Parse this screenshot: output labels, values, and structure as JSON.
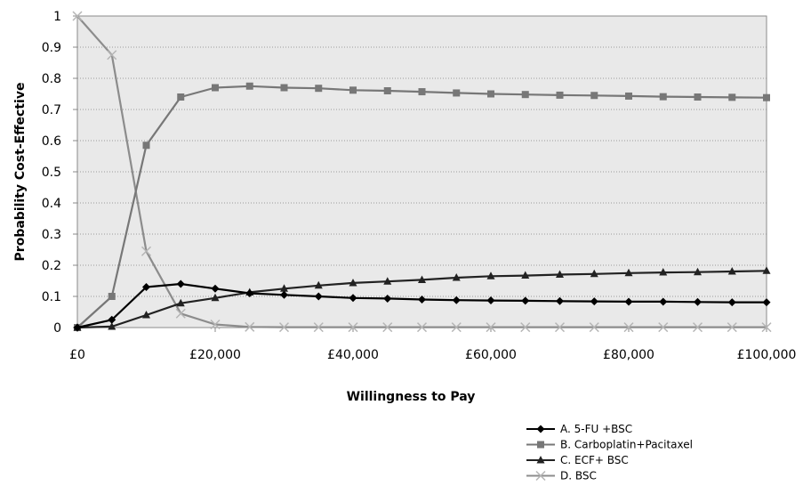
{
  "chart_data": {
    "type": "line",
    "title": "",
    "xlabel": "Willingness to Pay",
    "ylabel": "Probability Cost-Effective",
    "xlim": [
      0,
      100000
    ],
    "ylim": [
      0,
      1
    ],
    "grid": "horizontal dotted",
    "legend_position": "bottom-right",
    "x": [
      0,
      5000,
      10000,
      15000,
      20000,
      25000,
      30000,
      35000,
      40000,
      45000,
      50000,
      55000,
      60000,
      65000,
      70000,
      75000,
      80000,
      85000,
      90000,
      95000,
      100000
    ],
    "xtick_values": [
      0,
      20000,
      40000,
      60000,
      80000,
      100000
    ],
    "xtick_labels": [
      "£0",
      "£20,000",
      "£40,000",
      "£60,000",
      "£80,000",
      "£100,000"
    ],
    "ytick_values": [
      0,
      0.1,
      0.2,
      0.3,
      0.4,
      0.5,
      0.6,
      0.7,
      0.8,
      0.9,
      1
    ],
    "ytick_labels": [
      "0",
      "0.1",
      "0.2",
      "0.3",
      "0.4",
      "0.5",
      "0.6",
      "0.7",
      "0.8",
      "0.9",
      "1"
    ],
    "series": [
      {
        "name": "A. 5-FU +BSC",
        "color": "#000000",
        "marker": "diamond",
        "values": [
          0,
          0.025,
          0.13,
          0.14,
          0.125,
          0.11,
          0.105,
          0.1,
          0.095,
          0.093,
          0.09,
          0.088,
          0.087,
          0.086,
          0.085,
          0.084,
          0.083,
          0.083,
          0.082,
          0.081,
          0.081
        ]
      },
      {
        "name": "B. Carboplatin+Pacitaxel",
        "color": "#777777",
        "marker": "square",
        "values": [
          0,
          0.1,
          0.585,
          0.74,
          0.77,
          0.775,
          0.77,
          0.768,
          0.762,
          0.76,
          0.757,
          0.753,
          0.75,
          0.748,
          0.746,
          0.745,
          0.743,
          0.741,
          0.74,
          0.739,
          0.738
        ]
      },
      {
        "name": "C. ECF+ BSC",
        "color": "#222222",
        "marker": "triangle",
        "values": [
          0,
          0.003,
          0.04,
          0.078,
          0.095,
          0.113,
          0.125,
          0.135,
          0.143,
          0.148,
          0.153,
          0.16,
          0.165,
          0.167,
          0.17,
          0.172,
          0.175,
          0.177,
          0.178,
          0.18,
          0.182
        ]
      },
      {
        "name": "D.  BSC",
        "color": "#8c8c8c",
        "marker": "x",
        "values": [
          1,
          0.875,
          0.245,
          0.045,
          0.01,
          0.002,
          0.001,
          0.001,
          0.001,
          0.001,
          0.001,
          0.001,
          0.001,
          0.001,
          0.001,
          0.001,
          0.001,
          0.001,
          0.001,
          0.001,
          0.001
        ]
      }
    ]
  }
}
